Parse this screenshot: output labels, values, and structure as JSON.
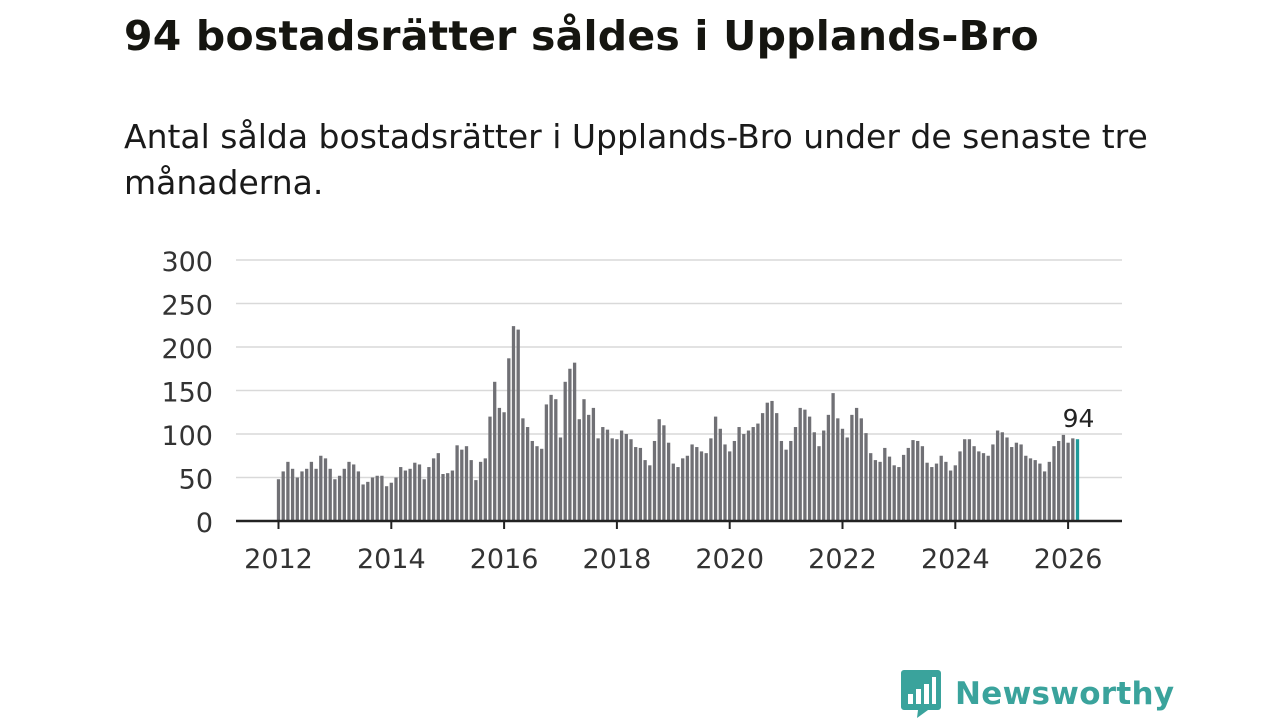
{
  "title": "94 bostadsrätter såldes i Upplands-Bro",
  "subtitle": "Antal sålda bostadsrätter i Upplands-Bro under de senaste tre månaderna.",
  "brand": {
    "name": "Newsworthy",
    "color": "#3aa39c",
    "icon": "newsworthy-logo-icon"
  },
  "colors": {
    "bar": "#707075",
    "highlight": "#1f9a9a",
    "grid": "#d9d9d9",
    "axis": "#222222"
  },
  "chart_data": {
    "type": "bar",
    "title": "94 bostadsrätter såldes i Upplands-Bro",
    "xlabel": "",
    "ylabel": "",
    "ylim": [
      0,
      300
    ],
    "yticks": [
      0,
      50,
      100,
      150,
      200,
      250,
      300
    ],
    "x_tick_labels": [
      "2012",
      "2014",
      "2016",
      "2018",
      "2020",
      "2022",
      "2024",
      "2026"
    ],
    "grid": true,
    "legend": "none",
    "series_start": "2012-01",
    "series_end": "2026-03",
    "values": [
      48,
      57,
      68,
      60,
      50,
      57,
      60,
      68,
      60,
      75,
      72,
      60,
      48,
      52,
      60,
      68,
      65,
      57,
      42,
      45,
      50,
      52,
      52,
      40,
      44,
      50,
      62,
      58,
      60,
      67,
      65,
      48,
      62,
      72,
      78,
      54,
      55,
      58,
      87,
      82,
      86,
      70,
      47,
      68,
      72,
      120,
      160,
      130,
      125,
      187,
      224,
      220,
      118,
      108,
      92,
      86,
      83,
      134,
      145,
      140,
      96,
      160,
      175,
      182,
      117,
      140,
      122,
      130,
      95,
      108,
      105,
      95,
      94,
      104,
      100,
      94,
      85,
      84,
      70,
      64,
      92,
      117,
      110,
      90,
      66,
      62,
      72,
      75,
      88,
      85,
      80,
      78,
      95,
      120,
      106,
      88,
      80,
      92,
      108,
      100,
      104,
      108,
      112,
      124,
      136,
      138,
      124,
      92,
      82,
      92,
      108,
      130,
      128,
      120,
      102,
      86,
      104,
      122,
      147,
      118,
      106,
      96,
      122,
      130,
      118,
      101,
      78,
      70,
      68,
      84,
      74,
      64,
      62,
      76,
      84,
      93,
      92,
      86,
      67,
      62,
      66,
      75,
      68,
      58,
      64,
      80,
      94,
      94,
      86,
      80,
      78,
      75,
      88,
      104,
      102,
      96,
      85,
      90,
      88,
      75,
      72,
      70,
      66,
      57,
      68,
      86,
      92,
      99,
      90,
      95,
      94
    ],
    "highlight_last": 1,
    "annotation": {
      "label": "94",
      "value": 94
    }
  }
}
